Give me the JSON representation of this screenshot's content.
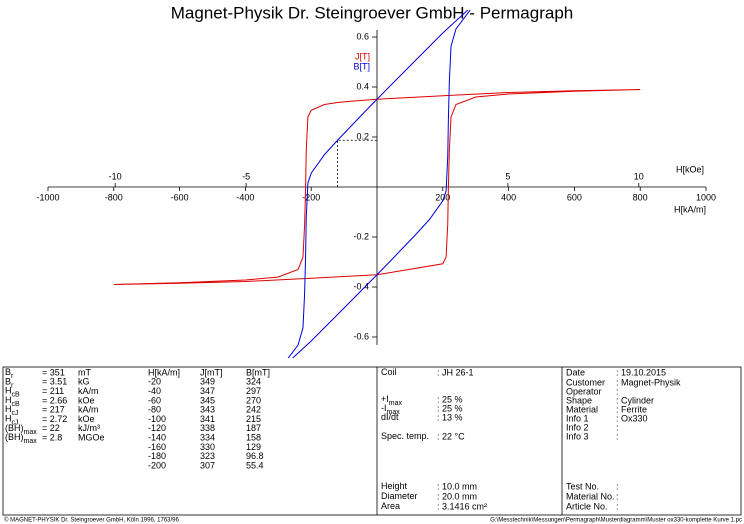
{
  "chart_data": {
    "type": "line",
    "title": "Magnet-Physik Dr. Steingroever GmbH - Permagraph",
    "xlabel": "H[kA/m]",
    "x2label": "H[kOe]",
    "xlim": [
      -1000,
      1000
    ],
    "xticks": [
      -1000,
      -800,
      -600,
      -400,
      -200,
      200,
      400,
      600,
      800,
      1000
    ],
    "x2lim": [
      -12.566,
      12.566
    ],
    "x2ticks": [
      -10,
      -5,
      5,
      10
    ],
    "ylim": [
      -0.64,
      0.64
    ],
    "yticks": [
      -0.6,
      -0.4,
      -0.2,
      0.2,
      0.4,
      0.6
    ],
    "series": [
      {
        "name": "J[T]",
        "color": "#e00000",
        "x": [
          800,
          600,
          400,
          200,
          100,
          0,
          -40,
          -80,
          -120,
          -160,
          -200,
          -210,
          -215,
          -217,
          -220,
          -225,
          -240,
          -300,
          -400,
          -600,
          -800,
          -600,
          -400,
          -200,
          0,
          200,
          210,
          215,
          217,
          220,
          225,
          240,
          300,
          400,
          600,
          800
        ],
        "values": [
          0.39,
          0.385,
          0.378,
          0.365,
          0.358,
          0.351,
          0.347,
          0.343,
          0.338,
          0.33,
          0.307,
          0.28,
          0.15,
          0,
          -0.15,
          -0.28,
          -0.33,
          -0.36,
          -0.372,
          -0.383,
          -0.39,
          -0.385,
          -0.378,
          -0.365,
          -0.351,
          -0.307,
          -0.28,
          -0.15,
          0,
          0.15,
          0.28,
          0.33,
          0.36,
          0.372,
          0.383,
          0.39
        ]
      },
      {
        "name": "B[T]",
        "color": "#0000e0",
        "x": [
          300,
          200,
          100,
          0,
          -40,
          -80,
          -120,
          -160,
          -200,
          -210,
          -215,
          -217,
          -220,
          -225,
          -240,
          -300,
          -200,
          -100,
          0,
          40,
          80,
          120,
          160,
          200,
          210,
          215,
          217,
          220,
          225,
          240,
          300
        ],
        "values": [
          0.737,
          0.616,
          0.484,
          0.351,
          0.297,
          0.242,
          0.187,
          0.129,
          0.055,
          0.016,
          -0.12,
          -0.273,
          -0.426,
          -0.563,
          -0.632,
          -0.737,
          -0.616,
          -0.484,
          -0.351,
          -0.297,
          -0.242,
          -0.187,
          -0.129,
          -0.055,
          -0.016,
          0.12,
          0.273,
          0.426,
          0.563,
          0.632,
          0.737
        ]
      }
    ],
    "bhmax_point": {
      "x": -120,
      "y": 0.187
    }
  },
  "params": [
    {
      "sym": "B",
      "sub": "r",
      "value": "= 351",
      "unit": "mT"
    },
    {
      "sym": "B",
      "sub": "r",
      "value": "= 3.51",
      "unit": "kG"
    },
    {
      "sym": "H",
      "sub": "cB",
      "value": "= 211",
      "unit": "kA/m"
    },
    {
      "sym": "H",
      "sub": "cB",
      "value": "= 2.66",
      "unit": "kOe"
    },
    {
      "sym": "H",
      "sub": "cJ",
      "value": "= 217",
      "unit": "kA/m"
    },
    {
      "sym": "H",
      "sub": "cJ",
      "value": "= 2.72",
      "unit": "kOe"
    },
    {
      "sym": "(BH)",
      "sub": "max",
      "value": "= 22",
      "unit": "kJ/m³"
    },
    {
      "sym": "(BH)",
      "sub": "max",
      "value": "= 2.8",
      "unit": "MGOe"
    }
  ],
  "table": {
    "headers": [
      "H[kA/m]",
      "J[mT]",
      "B[mT]"
    ],
    "rows": [
      [
        "-20",
        "349",
        "324"
      ],
      [
        "-40",
        "347",
        "297"
      ],
      [
        "-60",
        "345",
        "270"
      ],
      [
        "-80",
        "343",
        "242"
      ],
      [
        "-100",
        "341",
        "215"
      ],
      [
        "-120",
        "338",
        "187"
      ],
      [
        "-140",
        "334",
        "158"
      ],
      [
        "-160",
        "330",
        "129"
      ],
      [
        "-180",
        "323",
        "96.8"
      ],
      [
        "-200",
        "307",
        "55.4"
      ]
    ]
  },
  "measurement": [
    {
      "label": "Coil",
      "value": ": JH 26-1"
    },
    {
      "label": "+I",
      "sub": "max",
      "value": ": 25 %"
    },
    {
      "label": "-I",
      "sub": "max",
      "value": ": 25 %"
    },
    {
      "label": "dI/dt",
      "value": ": 13 %"
    },
    {
      "label": "Spec. temp.",
      "value": ": 22 °C"
    },
    {
      "label": "Height",
      "value": ": 10.0 mm"
    },
    {
      "label": "Diameter",
      "value": ": 20.0 mm"
    },
    {
      "label": "Area",
      "value": ": 3.1416 cm²"
    }
  ],
  "info": [
    {
      "label": "Date",
      "value": ": 19.10.2015"
    },
    {
      "label": "Customer",
      "value": ": Magnet-Physik"
    },
    {
      "label": "Operator",
      "value": ":"
    },
    {
      "label": "Shape",
      "value": ": Cylinder"
    },
    {
      "label": "Material",
      "value": ": Ferrite"
    },
    {
      "label": "Info 1",
      "value": ": Ox330"
    },
    {
      "label": "Info 2",
      "value": ":"
    },
    {
      "label": "Info 3",
      "value": ":"
    },
    {
      "label": "Test No.",
      "value": ":"
    },
    {
      "label": "Material No.",
      "value": ":"
    },
    {
      "label": "Article No.",
      "value": ":"
    }
  ],
  "footer": {
    "left": "© MAGNET-PHYSIK Dr. Steingroever GmbH, Köln 1996, 1763/96",
    "right": "G:\\Messtechnik\\Messungen\\Permagraph\\Musterdiagramm\\Muster ox330-komplette Kurve 1.pc"
  }
}
